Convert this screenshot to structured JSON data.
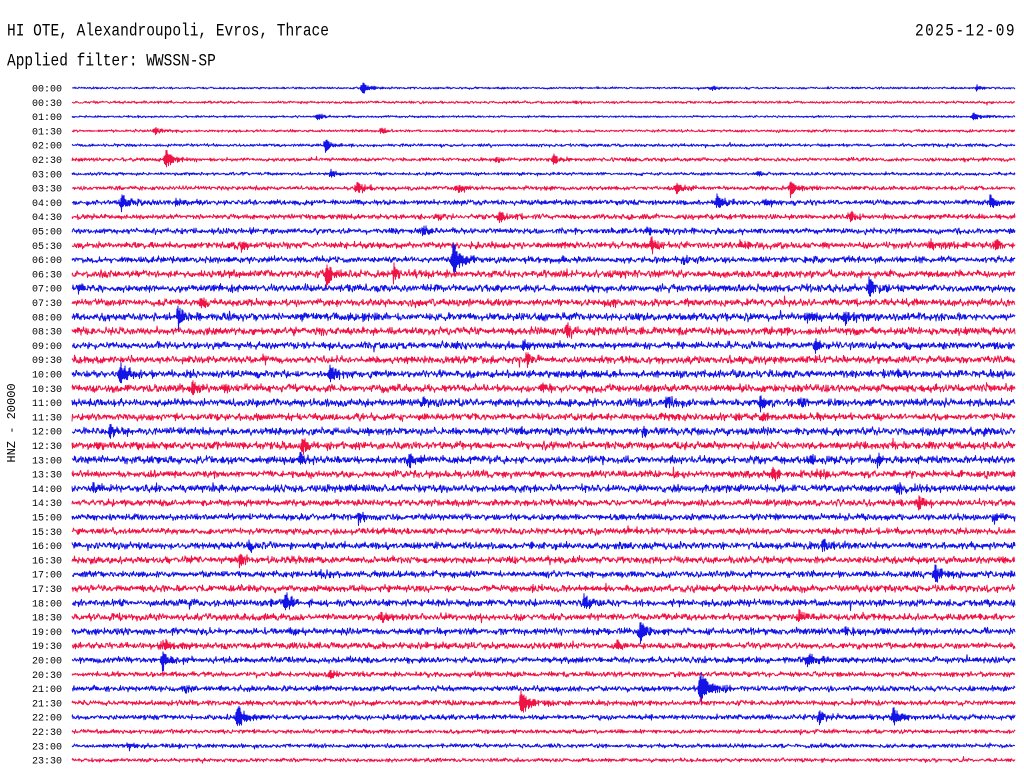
{
  "chart_data": {
    "type": "line",
    "title": "HI OTE, Alexandroupoli, Evros, Thrace",
    "subtitle": "Applied filter: WWSSN-SP",
    "date": "2025-12-09",
    "ylabel": "HNZ - 20000",
    "xlabel": "",
    "series": [
      {
        "name": "00:00",
        "color": "#1414e6",
        "noise": 0.08,
        "events": [
          {
            "t": "00:09:14",
            "amp": 0.5
          },
          {
            "t": "00:20:20",
            "amp": 0.2
          },
          {
            "t": "00:28:46",
            "amp": 0.2
          }
        ]
      },
      {
        "name": "00:30",
        "color": "#f01446",
        "noise": 0.1,
        "events": [
          {
            "t": "00:46:00",
            "amp": 0.15
          }
        ]
      },
      {
        "name": "01:00",
        "color": "#1414e6",
        "noise": 0.08,
        "events": [
          {
            "t": "01:07:48",
            "amp": 0.25
          },
          {
            "t": "01:28:40",
            "amp": 0.35
          }
        ]
      },
      {
        "name": "01:30",
        "color": "#f01446",
        "noise": 0.1,
        "events": [
          {
            "t": "01:32:38",
            "amp": 0.3
          },
          {
            "t": "01:39:48",
            "amp": 0.25
          }
        ]
      },
      {
        "name": "02:00",
        "color": "#1414e6",
        "noise": 0.12,
        "events": [
          {
            "t": "02:08:03",
            "amp": 0.5
          }
        ]
      },
      {
        "name": "02:30",
        "color": "#f01446",
        "noise": 0.14,
        "events": [
          {
            "t": "02:32:58",
            "amp": 0.8
          },
          {
            "t": "02:43:27",
            "amp": 0.25
          },
          {
            "t": "02:45:18",
            "amp": 0.4
          }
        ]
      },
      {
        "name": "03:00",
        "color": "#1414e6",
        "noise": 0.12,
        "events": [
          {
            "t": "03:08:14",
            "amp": 0.3
          },
          {
            "t": "03:21:48",
            "amp": 0.25
          }
        ]
      },
      {
        "name": "03:30",
        "color": "#f01446",
        "noise": 0.16,
        "events": [
          {
            "t": "03:39:04",
            "amp": 0.6
          },
          {
            "t": "03:42:17",
            "amp": 0.4
          },
          {
            "t": "03:49:13",
            "amp": 0.5
          },
          {
            "t": "03:52:51",
            "amp": 0.7
          }
        ]
      },
      {
        "name": "04:00",
        "color": "#1414e6",
        "noise": 0.2,
        "events": [
          {
            "t": "04:01:34",
            "amp": 0.7
          },
          {
            "t": "04:03:17",
            "amp": 0.3
          },
          {
            "t": "04:20:31",
            "amp": 0.7
          },
          {
            "t": "04:22:03",
            "amp": 0.35
          },
          {
            "t": "04:29:12",
            "amp": 0.6
          }
        ]
      },
      {
        "name": "04:30",
        "color": "#f01446",
        "noise": 0.2,
        "events": [
          {
            "t": "04:41:39",
            "amp": 0.3
          },
          {
            "t": "04:43:35",
            "amp": 0.5
          },
          {
            "t": "04:54:45",
            "amp": 0.5
          }
        ]
      },
      {
        "name": "05:00",
        "color": "#1414e6",
        "noise": 0.22,
        "events": [
          {
            "t": "05:11:08",
            "amp": 0.5
          },
          {
            "t": "05:18:16",
            "amp": 0.4
          }
        ]
      },
      {
        "name": "05:30",
        "color": "#f01446",
        "noise": 0.25,
        "events": [
          {
            "t": "05:35:23",
            "amp": 0.4
          },
          {
            "t": "05:48:25",
            "amp": 0.7
          },
          {
            "t": "05:51:15",
            "amp": 0.4
          },
          {
            "t": "05:57:18",
            "amp": 0.4
          },
          {
            "t": "05:59:22",
            "amp": 0.5
          }
        ]
      },
      {
        "name": "06:00",
        "color": "#1414e6",
        "noise": 0.25,
        "events": [
          {
            "t": "06:12:07",
            "amp": 1.4
          },
          {
            "t": "06:19:26",
            "amp": 0.3
          }
        ]
      },
      {
        "name": "06:30",
        "color": "#f01446",
        "noise": 0.28,
        "events": [
          {
            "t": "06:38:05",
            "amp": 1.0
          },
          {
            "t": "06:40:13",
            "amp": 0.6
          },
          {
            "t": "06:47:07",
            "amp": 0.3
          }
        ]
      },
      {
        "name": "07:00",
        "color": "#1414e6",
        "noise": 0.3,
        "events": [
          {
            "t": "07:00:11",
            "amp": 0.4
          },
          {
            "t": "07:11:33",
            "amp": 0.3
          },
          {
            "t": "07:25:21",
            "amp": 0.8
          }
        ]
      },
      {
        "name": "07:30",
        "color": "#f01446",
        "noise": 0.28,
        "events": [
          {
            "t": "07:34:04",
            "amp": 0.5
          },
          {
            "t": "07:47:11",
            "amp": 0.4
          }
        ]
      },
      {
        "name": "08:00",
        "color": "#1414e6",
        "noise": 0.3,
        "events": [
          {
            "t": "08:03:22",
            "amp": 0.9
          },
          {
            "t": "08:23:23",
            "amp": 0.6
          },
          {
            "t": "08:24:35",
            "amp": 0.5
          }
        ]
      },
      {
        "name": "08:30",
        "color": "#f01446",
        "noise": 0.3,
        "events": [
          {
            "t": "08:37:50",
            "amp": 0.3
          },
          {
            "t": "08:45:45",
            "amp": 0.6
          }
        ]
      },
      {
        "name": "09:00",
        "color": "#1414e6",
        "noise": 0.28,
        "events": [
          {
            "t": "09:14:21",
            "amp": 0.5
          },
          {
            "t": "09:23:38",
            "amp": 0.6
          }
        ]
      },
      {
        "name": "09:30",
        "color": "#f01446",
        "noise": 0.3,
        "events": [
          {
            "t": "09:36:03",
            "amp": 0.3
          },
          {
            "t": "09:44:29",
            "amp": 0.7
          }
        ]
      },
      {
        "name": "10:00",
        "color": "#1414e6",
        "noise": 0.3,
        "events": [
          {
            "t": "10:01:32",
            "amp": 0.9
          },
          {
            "t": "10:08:12",
            "amp": 0.7
          },
          {
            "t": "10:26:17",
            "amp": 0.3
          }
        ]
      },
      {
        "name": "10:30",
        "color": "#f01446",
        "noise": 0.3,
        "events": [
          {
            "t": "10:33:49",
            "amp": 0.6
          },
          {
            "t": "10:34:52",
            "amp": 0.3
          },
          {
            "t": "10:44:55",
            "amp": 0.4
          }
        ]
      },
      {
        "name": "11:00",
        "color": "#1414e6",
        "noise": 0.3,
        "events": [
          {
            "t": "11:11:08",
            "amp": 0.3
          },
          {
            "t": "11:18:54",
            "amp": 0.5
          },
          {
            "t": "11:21:53",
            "amp": 0.6
          },
          {
            "t": "11:23:10",
            "amp": 0.5
          }
        ]
      },
      {
        "name": "11:30",
        "color": "#f01446",
        "noise": 0.28,
        "events": [
          {
            "t": "11:51:55",
            "amp": 0.3
          },
          {
            "t": "11:53:42",
            "amp": 0.3
          }
        ]
      },
      {
        "name": "12:00",
        "color": "#1414e6",
        "noise": 0.3,
        "events": [
          {
            "t": "12:01:13",
            "amp": 0.6
          },
          {
            "t": "12:18:10",
            "amp": 0.4
          }
        ]
      },
      {
        "name": "12:30",
        "color": "#f01446",
        "noise": 0.3,
        "events": [
          {
            "t": "12:30:48",
            "amp": 0.3
          },
          {
            "t": "12:37:19",
            "amp": 0.8
          },
          {
            "t": "12:56:05",
            "amp": 0.4
          }
        ]
      },
      {
        "name": "13:00",
        "color": "#1414e6",
        "noise": 0.3,
        "events": [
          {
            "t": "13:07:15",
            "amp": 0.5
          },
          {
            "t": "13:10:43",
            "amp": 0.6
          },
          {
            "t": "13:23:29",
            "amp": 0.4
          },
          {
            "t": "13:25:37",
            "amp": 0.5
          }
        ]
      },
      {
        "name": "13:30",
        "color": "#f01446",
        "noise": 0.28,
        "events": [
          {
            "t": "13:52:16",
            "amp": 0.5
          },
          {
            "t": "13:53:42",
            "amp": 0.4
          }
        ]
      },
      {
        "name": "14:00",
        "color": "#1414e6",
        "noise": 0.28,
        "events": [
          {
            "t": "14:00:40",
            "amp": 0.4
          },
          {
            "t": "14:26:17",
            "amp": 0.5
          }
        ]
      },
      {
        "name": "14:30",
        "color": "#f01446",
        "noise": 0.26,
        "events": [
          {
            "t": "14:56:55",
            "amp": 0.6
          }
        ]
      },
      {
        "name": "15:00",
        "color": "#1414e6",
        "noise": 0.25,
        "events": [
          {
            "t": "15:09:06",
            "amp": 0.6
          },
          {
            "t": "15:29:20",
            "amp": 0.4
          }
        ]
      },
      {
        "name": "15:30",
        "color": "#f01446",
        "noise": 0.25,
        "events": [
          {
            "t": "15:47:41",
            "amp": 0.3
          }
        ]
      },
      {
        "name": "16:00",
        "color": "#1414e6",
        "noise": 0.27,
        "events": [
          {
            "t": "16:05:38",
            "amp": 0.6
          },
          {
            "t": "16:23:52",
            "amp": 0.6
          }
        ]
      },
      {
        "name": "16:30",
        "color": "#f01446",
        "noise": 0.27,
        "events": [
          {
            "t": "16:35:19",
            "amp": 0.6
          }
        ]
      },
      {
        "name": "17:00",
        "color": "#1414e6",
        "noise": 0.25,
        "events": [
          {
            "t": "17:07:55",
            "amp": 0.4
          },
          {
            "t": "17:27:27",
            "amp": 0.9
          }
        ]
      },
      {
        "name": "17:30",
        "color": "#f01446",
        "noise": 0.27,
        "events": [
          {
            "t": "17:38:37",
            "amp": 0.3
          }
        ]
      },
      {
        "name": "18:00",
        "color": "#1414e6",
        "noise": 0.27,
        "events": [
          {
            "t": "18:06:18",
            "amp": 0.3
          },
          {
            "t": "18:06:47",
            "amp": 0.7
          },
          {
            "t": "18:16:17",
            "amp": 0.6
          }
        ]
      },
      {
        "name": "18:30",
        "color": "#f01446",
        "noise": 0.27,
        "events": [
          {
            "t": "18:39:48",
            "amp": 0.5
          },
          {
            "t": "18:53:06",
            "amp": 0.6
          }
        ]
      },
      {
        "name": "19:00",
        "color": "#1414e6",
        "noise": 0.27,
        "events": [
          {
            "t": "19:07:02",
            "amp": 0.4
          },
          {
            "t": "19:18:04",
            "amp": 0.8
          },
          {
            "t": "19:24:32",
            "amp": 0.3
          }
        ]
      },
      {
        "name": "19:30",
        "color": "#f01446",
        "noise": 0.25,
        "events": [
          {
            "t": "19:32:52",
            "amp": 0.5
          },
          {
            "t": "19:47:20",
            "amp": 0.4
          }
        ]
      },
      {
        "name": "20:00",
        "color": "#1414e6",
        "noise": 0.24,
        "events": [
          {
            "t": "20:02:52",
            "amp": 0.8
          },
          {
            "t": "20:23:23",
            "amp": 0.6
          }
        ]
      },
      {
        "name": "20:30",
        "color": "#f01446",
        "noise": 0.2,
        "events": [
          {
            "t": "20:38:12",
            "amp": 0.3
          }
        ]
      },
      {
        "name": "21:00",
        "color": "#1414e6",
        "noise": 0.22,
        "events": [
          {
            "t": "21:03:38",
            "amp": 0.4
          },
          {
            "t": "21:19:59",
            "amp": 1.6
          }
        ]
      },
      {
        "name": "21:30",
        "color": "#f01446",
        "noise": 0.2,
        "events": [
          {
            "t": "21:44:17",
            "amp": 1.2
          }
        ]
      },
      {
        "name": "22:00",
        "color": "#1414e6",
        "noise": 0.2,
        "events": [
          {
            "t": "22:05:15",
            "amp": 1.0
          },
          {
            "t": "22:23:46",
            "amp": 0.6
          },
          {
            "t": "22:26:07",
            "amp": 0.8
          }
        ]
      },
      {
        "name": "22:30",
        "color": "#f01446",
        "noise": 0.16,
        "events": []
      },
      {
        "name": "23:00",
        "color": "#1414e6",
        "noise": 0.16,
        "events": [
          {
            "t": "23:01:49",
            "amp": 0.3
          }
        ]
      },
      {
        "name": "23:30",
        "color": "#f01446",
        "noise": 0.15,
        "events": []
      }
    ]
  }
}
